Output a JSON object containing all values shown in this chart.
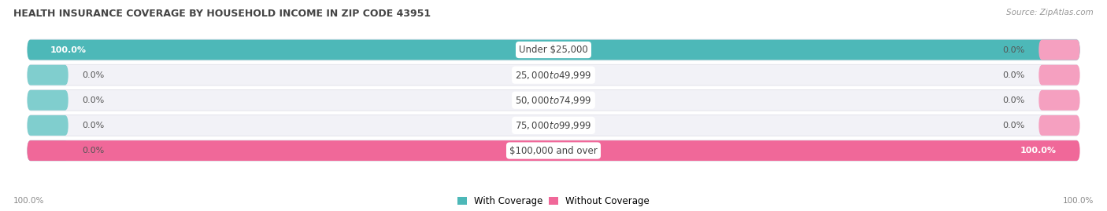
{
  "title": "HEALTH INSURANCE COVERAGE BY HOUSEHOLD INCOME IN ZIP CODE 43951",
  "source": "Source: ZipAtlas.com",
  "categories": [
    "Under $25,000",
    "$25,000 to $49,999",
    "$50,000 to $74,999",
    "$75,000 to $99,999",
    "$100,000 and over"
  ],
  "with_coverage": [
    100.0,
    0.0,
    0.0,
    0.0,
    0.0
  ],
  "without_coverage": [
    0.0,
    0.0,
    0.0,
    0.0,
    100.0
  ],
  "color_with": "#4db8b8",
  "color_with_light": "#80cece",
  "color_without": "#f06899",
  "color_without_light": "#f5a0c0",
  "bg_color": "#ffffff",
  "bar_bg_color": "#f2f2f7",
  "bar_border_color": "#e0e0e8",
  "figsize": [
    14.06,
    2.69
  ],
  "dpi": 100
}
